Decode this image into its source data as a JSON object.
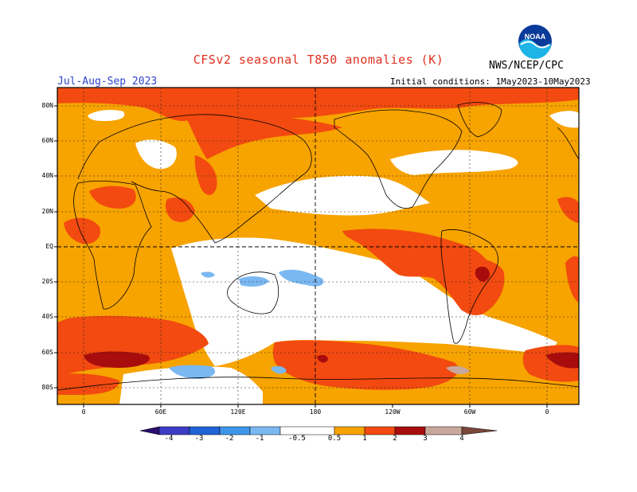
{
  "header": {
    "title": "CFSv2 seasonal T850 anomalies (K)",
    "season": "Jul-Aug-Sep 2023",
    "agency": "NWS/NCEP/CPC",
    "initial_conditions": "Initial conditions: 1May2023-10May2023",
    "logo_text": "NOAA"
  },
  "map": {
    "lat_labels": [
      "80N",
      "60N",
      "40N",
      "20N",
      "EQ",
      "20S",
      "40S",
      "60S",
      "80S"
    ],
    "lon_labels": [
      "0",
      "60E",
      "120E",
      "180",
      "120W",
      "60W",
      "0"
    ]
  },
  "colorbar": {
    "labels": [
      "-4",
      "-3",
      "-2",
      "-1",
      "-0.5",
      "0.5",
      "1",
      "2",
      "3",
      "4"
    ],
    "colors": {
      "lt_-4": "#2a0d6e",
      "-4_-3": "#3d3cc4",
      "-3_-2": "#1f64d6",
      "-2_-1": "#3f96e8",
      "-1_-0.5": "#7ab8f2",
      "-0.5_0.5": "#ffffff",
      "0.5_1": "#f7a300",
      "1_2": "#f24a10",
      "2_3": "#a80c0c",
      "3_4": "#c8a79c",
      "gt_4": "#7a4838"
    }
  }
}
